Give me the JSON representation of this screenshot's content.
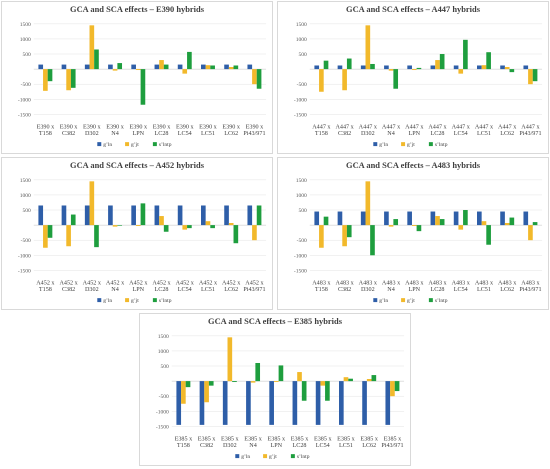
{
  "colors": {
    "g_ln": "#2e5ea8",
    "g_tp": "#f2b92b",
    "s_lntp": "#1e9e3e"
  },
  "legend": [
    "g’ln",
    "g’jt",
    "s’lntp"
  ],
  "chart_data": [
    {
      "type": "bar",
      "title": "GCA and SCA effects – E390 hybrids",
      "yticks": [
        1500,
        1000,
        500,
        -500,
        -1000,
        -1500
      ],
      "ylim": [
        -1700,
        1700
      ],
      "categories": [
        [
          "E390 x",
          "T158"
        ],
        [
          "E390 x",
          "C382"
        ],
        [
          "E390 x",
          "D302"
        ],
        [
          "E390 x",
          "N4"
        ],
        [
          "E390 x",
          "LPN"
        ],
        [
          "E390 x",
          "LC28"
        ],
        [
          "E390 x",
          "LC54"
        ],
        [
          "E390 x",
          "LC51"
        ],
        [
          "E390 x",
          "LC62"
        ],
        [
          "E390 x",
          "Pi43/971"
        ]
      ],
      "series": [
        {
          "name": "g’ln",
          "values": [
            150,
            150,
            150,
            150,
            150,
            150,
            150,
            150,
            150,
            150
          ]
        },
        {
          "name": "g’jt",
          "values": [
            -720,
            -700,
            1450,
            -50,
            -30,
            300,
            -150,
            130,
            70,
            -500
          ]
        },
        {
          "name": "s’lntp",
          "values": [
            -400,
            -620,
            650,
            200,
            -1180,
            150,
            570,
            120,
            120,
            -650
          ]
        }
      ]
    },
    {
      "type": "bar",
      "title": "GCA and SCA effects – A447 hybrids",
      "yticks": [
        1500,
        1000,
        500,
        -500,
        -1000,
        -1500
      ],
      "ylim": [
        -1700,
        1700
      ],
      "categories": [
        [
          "A447 x",
          "T158"
        ],
        [
          "A447 x",
          "C382"
        ],
        [
          "A447 x",
          "D302"
        ],
        [
          "A447 x",
          "N4"
        ],
        [
          "A447 x",
          "LPN"
        ],
        [
          "A447 x",
          "LC28"
        ],
        [
          "A447 x",
          "LC54"
        ],
        [
          "A447 x",
          "LC51"
        ],
        [
          "A447 x",
          "LC62"
        ],
        [
          "A447 x",
          "Pi43/971"
        ]
      ],
      "series": [
        {
          "name": "g’ln",
          "values": [
            120,
            120,
            120,
            120,
            120,
            120,
            120,
            120,
            120,
            120
          ]
        },
        {
          "name": "g’jt",
          "values": [
            -750,
            -700,
            1450,
            -50,
            -30,
            300,
            -150,
            130,
            70,
            -500
          ]
        },
        {
          "name": "s’lntp",
          "values": [
            280,
            350,
            170,
            -650,
            40,
            500,
            970,
            560,
            -100,
            -400
          ]
        }
      ]
    },
    {
      "type": "bar",
      "title": "GCA and SCA effects – A452 hybrids",
      "yticks": [
        1500,
        1000,
        500,
        -500,
        -1000,
        -1500
      ],
      "ylim": [
        -1700,
        1700
      ],
      "categories": [
        [
          "A452 x",
          "T158"
        ],
        [
          "A452 x",
          "C382"
        ],
        [
          "A452 x",
          "D302"
        ],
        [
          "A452 x",
          "N4"
        ],
        [
          "A452 x",
          "LPN"
        ],
        [
          "A452 x",
          "LC28"
        ],
        [
          "A452 x",
          "LC54"
        ],
        [
          "A452 x",
          "LC51"
        ],
        [
          "A452 x",
          "LC62"
        ],
        [
          "A452 x",
          "Pi43/971"
        ]
      ],
      "series": [
        {
          "name": "g’ln",
          "values": [
            650,
            650,
            650,
            650,
            650,
            650,
            650,
            650,
            650,
            650
          ]
        },
        {
          "name": "g’jt",
          "values": [
            -750,
            -700,
            1450,
            -50,
            -30,
            300,
            -150,
            130,
            70,
            -500
          ]
        },
        {
          "name": "s’lntp",
          "values": [
            -420,
            350,
            -730,
            -20,
            720,
            -220,
            -100,
            -100,
            -600,
            650
          ]
        }
      ]
    },
    {
      "type": "bar",
      "title": "GCA and SCA effects – A483 hybrids",
      "yticks": [
        1500,
        1000,
        500,
        -500,
        -1000,
        -1500
      ],
      "ylim": [
        -1700,
        1700
      ],
      "categories": [
        [
          "A483 x",
          "T158"
        ],
        [
          "A483 x",
          "C382"
        ],
        [
          "A483 x",
          "D302"
        ],
        [
          "A483 x",
          "N4"
        ],
        [
          "A483 x",
          "LPN"
        ],
        [
          "A483 x",
          "LC28"
        ],
        [
          "A483 x",
          "LC54"
        ],
        [
          "A483 x",
          "LC51"
        ],
        [
          "A483 x",
          "LC62"
        ],
        [
          "A483 x",
          "Pi43/971"
        ]
      ],
      "series": [
        {
          "name": "g’ln",
          "values": [
            450,
            450,
            450,
            450,
            450,
            450,
            450,
            450,
            450,
            450
          ]
        },
        {
          "name": "g’jt",
          "values": [
            -750,
            -700,
            1450,
            -50,
            -30,
            300,
            -150,
            130,
            70,
            -500
          ]
        },
        {
          "name": "s’lntp",
          "values": [
            280,
            -400,
            -1000,
            200,
            -200,
            200,
            500,
            -650,
            250,
            100
          ]
        }
      ]
    },
    {
      "type": "bar",
      "title": "GCA and SCA effects – E385 hybrids",
      "yticks": [
        1500,
        1000,
        500,
        -500,
        -1000,
        -1500
      ],
      "ylim": [
        -1700,
        1700
      ],
      "categories": [
        [
          "E385 x",
          "T158"
        ],
        [
          "E385 x",
          "C382"
        ],
        [
          "E385 x",
          "D302"
        ],
        [
          "E385 x",
          "N4"
        ],
        [
          "E385 x",
          "LPN"
        ],
        [
          "E385 x",
          "LC28"
        ],
        [
          "E385 x",
          "LC54"
        ],
        [
          "E385 x",
          "LC51"
        ],
        [
          "E385 x",
          "LC62"
        ],
        [
          "E385 x",
          "Pi43/971"
        ]
      ],
      "series": [
        {
          "name": "g’ln",
          "values": [
            -1450,
            -1450,
            -1450,
            -1450,
            -1450,
            -1450,
            -1450,
            -1450,
            -1450,
            -1450
          ]
        },
        {
          "name": "g’jt",
          "values": [
            -750,
            -700,
            1450,
            -50,
            -30,
            300,
            -150,
            130,
            70,
            -500
          ]
        },
        {
          "name": "s’lntp",
          "values": [
            -200,
            -150,
            -30,
            600,
            520,
            -650,
            -650,
            80,
            200,
            -330
          ]
        }
      ]
    }
  ]
}
